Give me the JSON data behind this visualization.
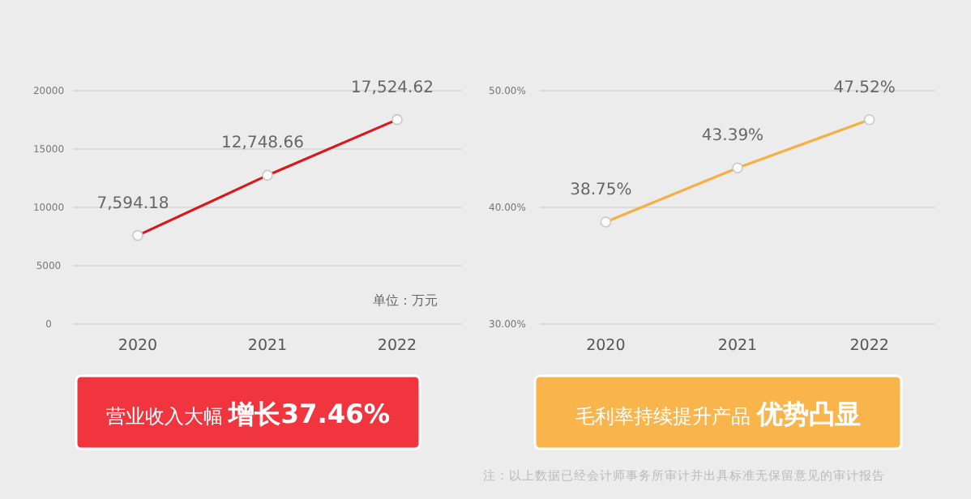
{
  "chart_data": [
    {
      "type": "line",
      "title": "营业收入大幅 **增长37.46%**",
      "categories": [
        "2020",
        "2021",
        "2022"
      ],
      "series": [
        {
          "color": "#d7191c",
          "values": [
            7594.18,
            12748.66,
            17524.62
          ],
          "value_labels": [
            "7,594.18",
            "12,748.66",
            "17,524.62"
          ]
        }
      ],
      "ylim": [
        0,
        20000
      ],
      "yticks": [
        0,
        5000,
        10000,
        15000,
        20000
      ],
      "grid": "y",
      "marker": "circle",
      "annotations": [
        "单位：万元"
      ]
    },
    {
      "type": "line",
      "title": "毛利率持续提升产品 **优势凸显**",
      "categories": [
        "2020",
        "2021",
        "2022"
      ],
      "series": [
        {
          "color": "#f5b044",
          "values": [
            38.75,
            43.39,
            47.52
          ],
          "value_labels": [
            "38.75%",
            "43.39%",
            "47.52%"
          ]
        }
      ],
      "ylim": [
        30,
        50
      ],
      "yticks": [
        {
          "value": 30,
          "label": "30.00%"
        },
        {
          "value": 40,
          "label": "40.00%"
        },
        {
          "value": 50,
          "label": "50.00%"
        }
      ],
      "grid": "y",
      "marker": "circle",
      "annotations": [
        "注：以上数据已经会计师事务所审计并出具标准无保留意见的审计报告"
      ]
    }
  ]
}
